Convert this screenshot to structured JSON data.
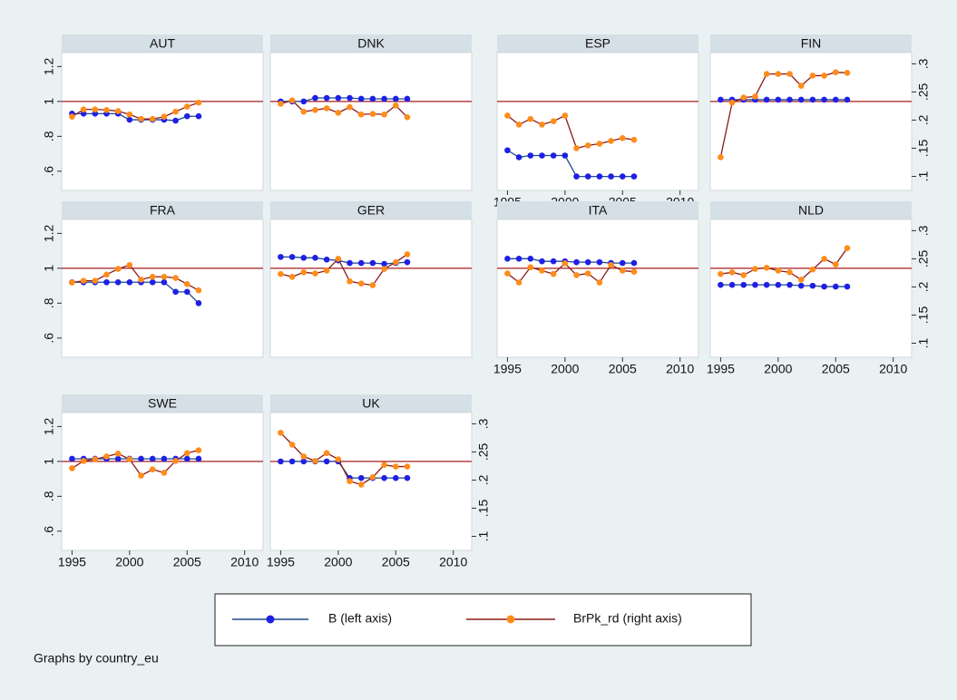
{
  "chart_data": [
    {
      "type": "line",
      "title": "AUT",
      "x": [
        1995,
        1996,
        1997,
        1998,
        1999,
        2000,
        2001,
        2002,
        2003,
        2004,
        2005,
        2006
      ],
      "xlim": [
        1994.1,
        2011.6
      ],
      "ylim": [
        0.49,
        1.28
      ],
      "yticks": [
        {
          "value": 0.6,
          "label": ".6"
        },
        {
          "value": 0.8,
          "label": ".8"
        },
        1,
        1.2
      ],
      "y2lim": [
        0.075,
        0.32
      ],
      "refline": 1,
      "refline_color": "#a51c1c",
      "series": [
        {
          "name": "B (left axis)",
          "color": "#1a4a8c",
          "marker_color": "#1f1fe6",
          "values": [
            0.93,
            0.93,
            0.93,
            0.93,
            0.93,
            0.895,
            0.895,
            0.895,
            0.895,
            0.89,
            0.915,
            0.915
          ]
        },
        {
          "name": "BrPk_rd (right axis)",
          "color": "#8b1a1a",
          "marker_color": "#ff8c1a",
          "axis": "y2",
          "values": [
            0.206,
            0.219,
            0.219,
            0.218,
            0.216,
            0.21,
            0.202,
            0.202,
            0.206,
            0.215,
            0.224,
            0.231
          ]
        }
      ]
    },
    {
      "type": "line",
      "title": "DNK",
      "x": [
        1995,
        1996,
        1997,
        1998,
        1999,
        2000,
        2001,
        2002,
        2003,
        2004,
        2005,
        2006
      ],
      "xlim": [
        1994.1,
        2011.6
      ],
      "ylim": [
        0.49,
        1.28
      ],
      "y2lim": [
        0.075,
        0.32
      ],
      "refline": 1,
      "refline_color": "#a51c1c",
      "series": [
        {
          "name": "B (left axis)",
          "color": "#1a4a8c",
          "marker_color": "#1f1fe6",
          "values": [
            1.0,
            1.0,
            1.0,
            1.02,
            1.02,
            1.02,
            1.02,
            1.015,
            1.015,
            1.015,
            1.015,
            1.015
          ]
        },
        {
          "name": "BrPk_rd (right axis)",
          "color": "#8b1a1a",
          "marker_color": "#ff8c1a",
          "axis": "y2",
          "values": [
            0.229,
            0.235,
            0.215,
            0.218,
            0.221,
            0.213,
            0.223,
            0.21,
            0.211,
            0.21,
            0.226,
            0.205
          ]
        }
      ]
    },
    {
      "type": "line",
      "title": "ESP",
      "x": [
        1995,
        1996,
        1997,
        1998,
        1999,
        2000,
        2001,
        2002,
        2003,
        2004,
        2005,
        2006
      ],
      "xlim": [
        1994.1,
        2011.6
      ],
      "xticks": [
        1995,
        2000,
        2005,
        2010
      ],
      "ylim": [
        0.49,
        1.28
      ],
      "y2lim": [
        0.075,
        0.32
      ],
      "refline": 1,
      "refline_color": "#a51c1c",
      "series": [
        {
          "name": "B (left axis)",
          "color": "#1a4a8c",
          "marker_color": "#1f1fe6",
          "values": [
            0.72,
            0.68,
            0.69,
            0.69,
            0.69,
            0.69,
            0.57,
            0.57,
            0.57,
            0.57,
            0.57,
            0.57
          ]
        },
        {
          "name": "BrPk_rd (right axis)",
          "color": "#8b1a1a",
          "marker_color": "#ff8c1a",
          "axis": "y2",
          "values": [
            0.208,
            0.192,
            0.202,
            0.192,
            0.198,
            0.208,
            0.15,
            0.155,
            0.158,
            0.163,
            0.168,
            0.165
          ]
        }
      ]
    },
    {
      "type": "line",
      "title": "FIN",
      "x": [
        1995,
        1996,
        1997,
        1998,
        1999,
        2000,
        2001,
        2002,
        2003,
        2004,
        2005,
        2006
      ],
      "xlim": [
        1994.1,
        2011.6
      ],
      "ylim": [
        0.49,
        1.28
      ],
      "y2lim": [
        0.075,
        0.32
      ],
      "y2ticks": [
        {
          "value": 0.1,
          "label": ".1"
        },
        {
          "value": 0.15,
          "label": ".15"
        },
        {
          "value": 0.2,
          "label": ".2"
        },
        {
          "value": 0.25,
          "label": ".25"
        },
        {
          "value": 0.3,
          "label": ".3"
        }
      ],
      "refline": 1,
      "refline_color": "#a51c1c",
      "series": [
        {
          "name": "B (left axis)",
          "color": "#1a4a8c",
          "marker_color": "#1f1fe6",
          "values": [
            1.01,
            1.01,
            1.01,
            1.01,
            1.01,
            1.01,
            1.01,
            1.01,
            1.01,
            1.01,
            1.01,
            1.01
          ]
        },
        {
          "name": "BrPk_rd (right axis)",
          "color": "#8b1a1a",
          "marker_color": "#ff8c1a",
          "axis": "y2",
          "values": [
            0.134,
            0.231,
            0.24,
            0.242,
            0.282,
            0.282,
            0.282,
            0.261,
            0.279,
            0.279,
            0.285,
            0.284
          ]
        }
      ]
    },
    {
      "type": "line",
      "title": "FRA",
      "x": [
        1995,
        1996,
        1997,
        1998,
        1999,
        2000,
        2001,
        2002,
        2003,
        2004,
        2005,
        2006
      ],
      "xlim": [
        1994.1,
        2011.6
      ],
      "ylim": [
        0.49,
        1.28
      ],
      "yticks": [
        {
          "value": 0.6,
          "label": ".6"
        },
        {
          "value": 0.8,
          "label": ".8"
        },
        1,
        1.2
      ],
      "y2lim": [
        0.075,
        0.32
      ],
      "refline": 1,
      "refline_color": "#a51c1c",
      "series": [
        {
          "name": "B (left axis)",
          "color": "#1a4a8c",
          "marker_color": "#1f1fe6",
          "values": [
            0.92,
            0.92,
            0.92,
            0.92,
            0.92,
            0.92,
            0.92,
            0.92,
            0.92,
            0.865,
            0.865,
            0.8
          ]
        },
        {
          "name": "BrPk_rd (right axis)",
          "color": "#8b1a1a",
          "marker_color": "#ff8c1a",
          "axis": "y2",
          "values": [
            0.208,
            0.211,
            0.211,
            0.222,
            0.232,
            0.239,
            0.213,
            0.218,
            0.218,
            0.216,
            0.205,
            0.194
          ]
        }
      ]
    },
    {
      "type": "line",
      "title": "GER",
      "x": [
        1995,
        1996,
        1997,
        1998,
        1999,
        2000,
        2001,
        2002,
        2003,
        2004,
        2005,
        2006
      ],
      "xlim": [
        1994.1,
        2011.6
      ],
      "ylim": [
        0.49,
        1.28
      ],
      "y2lim": [
        0.075,
        0.32
      ],
      "refline": 1,
      "refline_color": "#a51c1c",
      "series": [
        {
          "name": "B (left axis)",
          "color": "#1a4a8c",
          "marker_color": "#1f1fe6",
          "values": [
            1.065,
            1.065,
            1.06,
            1.06,
            1.05,
            1.045,
            1.03,
            1.03,
            1.03,
            1.025,
            1.03,
            1.035
          ]
        },
        {
          "name": "BrPk_rd (right axis)",
          "color": "#8b1a1a",
          "marker_color": "#ff8c1a",
          "axis": "y2",
          "values": [
            0.223,
            0.218,
            0.226,
            0.224,
            0.229,
            0.25,
            0.21,
            0.206,
            0.203,
            0.232,
            0.244,
            0.258
          ]
        }
      ]
    },
    {
      "type": "line",
      "title": "ITA",
      "x": [
        1995,
        1996,
        1997,
        1998,
        1999,
        2000,
        2001,
        2002,
        2003,
        2004,
        2005,
        2006
      ],
      "xlim": [
        1994.1,
        2011.6
      ],
      "xticks": [
        1995,
        2000,
        2005,
        2010
      ],
      "ylim": [
        0.49,
        1.28
      ],
      "y2lim": [
        0.075,
        0.32
      ],
      "refline": 1,
      "refline_color": "#a51c1c",
      "series": [
        {
          "name": "B (left axis)",
          "color": "#1a4a8c",
          "marker_color": "#1f1fe6",
          "values": [
            1.055,
            1.055,
            1.055,
            1.04,
            1.04,
            1.04,
            1.035,
            1.035,
            1.035,
            1.03,
            1.03,
            1.03
          ]
        },
        {
          "name": "BrPk_rd (right axis)",
          "color": "#8b1a1a",
          "marker_color": "#ff8c1a",
          "axis": "y2",
          "values": [
            0.224,
            0.208,
            0.235,
            0.229,
            0.223,
            0.242,
            0.221,
            0.224,
            0.208,
            0.239,
            0.229,
            0.227
          ]
        }
      ]
    },
    {
      "type": "line",
      "title": "NLD",
      "x": [
        1995,
        1996,
        1997,
        1998,
        1999,
        2000,
        2001,
        2002,
        2003,
        2004,
        2005,
        2006
      ],
      "xlim": [
        1994.1,
        2011.6
      ],
      "xticks": [
        1995,
        2000,
        2005,
        2010
      ],
      "ylim": [
        0.49,
        1.28
      ],
      "y2lim": [
        0.075,
        0.32
      ],
      "y2ticks": [
        {
          "value": 0.1,
          "label": ".1"
        },
        {
          "value": 0.15,
          "label": ".15"
        },
        {
          "value": 0.2,
          "label": ".2"
        },
        {
          "value": 0.25,
          "label": ".25"
        },
        {
          "value": 0.3,
          "label": ".3"
        }
      ],
      "refline": 1,
      "refline_color": "#a51c1c",
      "series": [
        {
          "name": "B (left axis)",
          "color": "#1a4a8c",
          "marker_color": "#1f1fe6",
          "values": [
            0.905,
            0.905,
            0.905,
            0.905,
            0.905,
            0.905,
            0.905,
            0.9,
            0.9,
            0.895,
            0.895,
            0.895
          ]
        },
        {
          "name": "BrPk_rd (right axis)",
          "color": "#8b1a1a",
          "marker_color": "#ff8c1a",
          "axis": "y2",
          "values": [
            0.223,
            0.226,
            0.221,
            0.232,
            0.234,
            0.229,
            0.226,
            0.213,
            0.231,
            0.25,
            0.24,
            0.269
          ]
        }
      ]
    },
    {
      "type": "line",
      "title": "SWE",
      "x": [
        1995,
        1996,
        1997,
        1998,
        1999,
        2000,
        2001,
        2002,
        2003,
        2004,
        2005,
        2006
      ],
      "xlim": [
        1994.1,
        2011.6
      ],
      "xticks": [
        1995,
        2000,
        2005,
        2010
      ],
      "ylim": [
        0.49,
        1.28
      ],
      "yticks": [
        {
          "value": 0.6,
          "label": ".6"
        },
        {
          "value": 0.8,
          "label": ".8"
        },
        1,
        1.2
      ],
      "y2lim": [
        0.075,
        0.32
      ],
      "refline": 1,
      "refline_color": "#a51c1c",
      "series": [
        {
          "name": "B (left axis)",
          "color": "#1a4a8c",
          "marker_color": "#1f1fe6",
          "values": [
            1.015,
            1.015,
            1.015,
            1.015,
            1.015,
            1.015,
            1.015,
            1.015,
            1.015,
            1.015,
            1.015,
            1.015
          ]
        },
        {
          "name": "BrPk_rd (right axis)",
          "color": "#8b1a1a",
          "marker_color": "#ff8c1a",
          "axis": "y2",
          "values": [
            0.221,
            0.234,
            0.237,
            0.242,
            0.247,
            0.237,
            0.208,
            0.219,
            0.213,
            0.234,
            0.248,
            0.253
          ]
        }
      ]
    },
    {
      "type": "line",
      "title": "UK",
      "x": [
        1995,
        1996,
        1997,
        1998,
        1999,
        2000,
        2001,
        2002,
        2003,
        2004,
        2005,
        2006
      ],
      "xlim": [
        1994.1,
        2011.6
      ],
      "xticks": [
        1995,
        2000,
        2005,
        2010
      ],
      "ylim": [
        0.49,
        1.28
      ],
      "y2lim": [
        0.075,
        0.32
      ],
      "y2ticks": [
        {
          "value": 0.1,
          "label": ".1"
        },
        {
          "value": 0.15,
          "label": ".15"
        },
        {
          "value": 0.2,
          "label": ".2"
        },
        {
          "value": 0.25,
          "label": ".25"
        },
        {
          "value": 0.3,
          "label": ".3"
        }
      ],
      "refline": 1,
      "refline_color": "#a51c1c",
      "series": [
        {
          "name": "B (left axis)",
          "color": "#1a4a8c",
          "marker_color": "#1f1fe6",
          "values": [
            1.0,
            1.0,
            1.0,
            1.0,
            1.0,
            1.0,
            0.905,
            0.905,
            0.905,
            0.905,
            0.905,
            0.905
          ]
        },
        {
          "name": "BrPk_rd (right axis)",
          "color": "#8b1a1a",
          "marker_color": "#ff8c1a",
          "axis": "y2",
          "values": [
            0.284,
            0.263,
            0.242,
            0.234,
            0.248,
            0.237,
            0.198,
            0.192,
            0.205,
            0.227,
            0.224,
            0.224
          ]
        }
      ]
    }
  ],
  "note": "Graphs by country_eu"
}
